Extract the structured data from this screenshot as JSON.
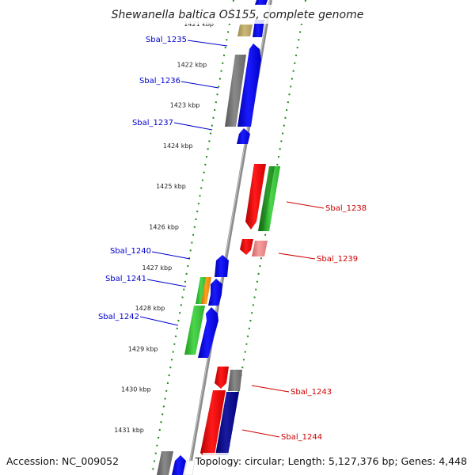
{
  "title": "Shewanella baltica OS155, complete genome",
  "footer": {
    "accession": "Accession: NC_009052",
    "topology": "Topology: circular; Length: 5,127,376 bp; Genes: 4,448"
  },
  "colors": {
    "forward_label": "#0000cc",
    "reverse_label": "#cc0000",
    "backbone": "#8c8c8c",
    "dots": "#1a8a1a"
  },
  "kbp_ticks": [
    "1421 kbp",
    "1422 kbp",
    "1423 kbp",
    "1424 kbp",
    "1425 kbp",
    "1426 kbp",
    "1427 kbp",
    "1428 kbp",
    "1429 kbp",
    "1430 kbp",
    "1431 kbp"
  ],
  "gene_labels": [
    {
      "text": "Sbal_1235",
      "strand": "forward"
    },
    {
      "text": "Sbal_1236",
      "strand": "forward"
    },
    {
      "text": "Sbal_1237",
      "strand": "forward"
    },
    {
      "text": "Sbal_1238",
      "strand": "reverse"
    },
    {
      "text": "Sbal_1239",
      "strand": "reverse"
    },
    {
      "text": "Sbal_1240",
      "strand": "forward"
    },
    {
      "text": "Sbal_1241",
      "strand": "forward"
    },
    {
      "text": "Sbal_1242",
      "strand": "forward"
    },
    {
      "text": "Sbal_1243",
      "strand": "reverse"
    },
    {
      "text": "Sbal_1244",
      "strand": "reverse"
    }
  ]
}
